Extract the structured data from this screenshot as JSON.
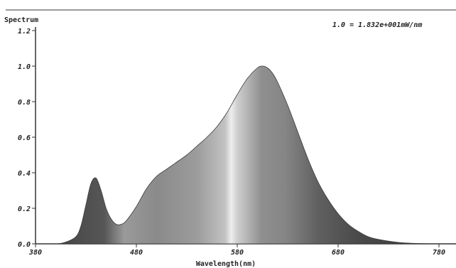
{
  "chart_data": {
    "type": "area",
    "title": "",
    "ylabel": "Spectrum",
    "xlabel": "Wavelength(nm)",
    "normalization_note": "1.0 = 1.832e+001mW/nm",
    "xlim": [
      380,
      780
    ],
    "ylim": [
      0,
      1.2
    ],
    "x_ticks": [
      380,
      480,
      580,
      680,
      780
    ],
    "y_ticks": [
      0.0,
      0.2,
      0.4,
      0.6,
      0.8,
      1.0,
      1.2
    ],
    "x_tick_labels": [
      "380",
      "480",
      "580",
      "680",
      "780"
    ],
    "y_tick_labels": [
      "0.0",
      "0.2",
      "0.4",
      "0.6",
      "0.8",
      "1.0",
      "1.2"
    ],
    "grid": false,
    "colors": {
      "fill_dark": "#3d3d3d",
      "fill_mid": "#8a8a8a",
      "fill_light": "#e6e6e6",
      "axis": "#333333"
    },
    "series": [
      {
        "x": [
          380,
          400,
          410,
          420,
          425,
          430,
          435,
          440,
          445,
          450,
          455,
          460,
          465,
          470,
          480,
          490,
          500,
          510,
          520,
          530,
          540,
          550,
          560,
          570,
          580,
          590,
          600,
          605,
          610,
          615,
          620,
          630,
          640,
          650,
          660,
          670,
          680,
          690,
          700,
          710,
          720,
          740,
          760,
          780
        ],
        "y": [
          0.0,
          0.0,
          0.01,
          0.04,
          0.1,
          0.22,
          0.34,
          0.37,
          0.3,
          0.2,
          0.14,
          0.11,
          0.11,
          0.13,
          0.21,
          0.31,
          0.38,
          0.42,
          0.46,
          0.5,
          0.55,
          0.6,
          0.66,
          0.74,
          0.84,
          0.93,
          0.99,
          1.0,
          0.99,
          0.96,
          0.91,
          0.78,
          0.63,
          0.48,
          0.35,
          0.25,
          0.17,
          0.11,
          0.07,
          0.04,
          0.025,
          0.008,
          0.002,
          0.0
        ]
      }
    ]
  }
}
